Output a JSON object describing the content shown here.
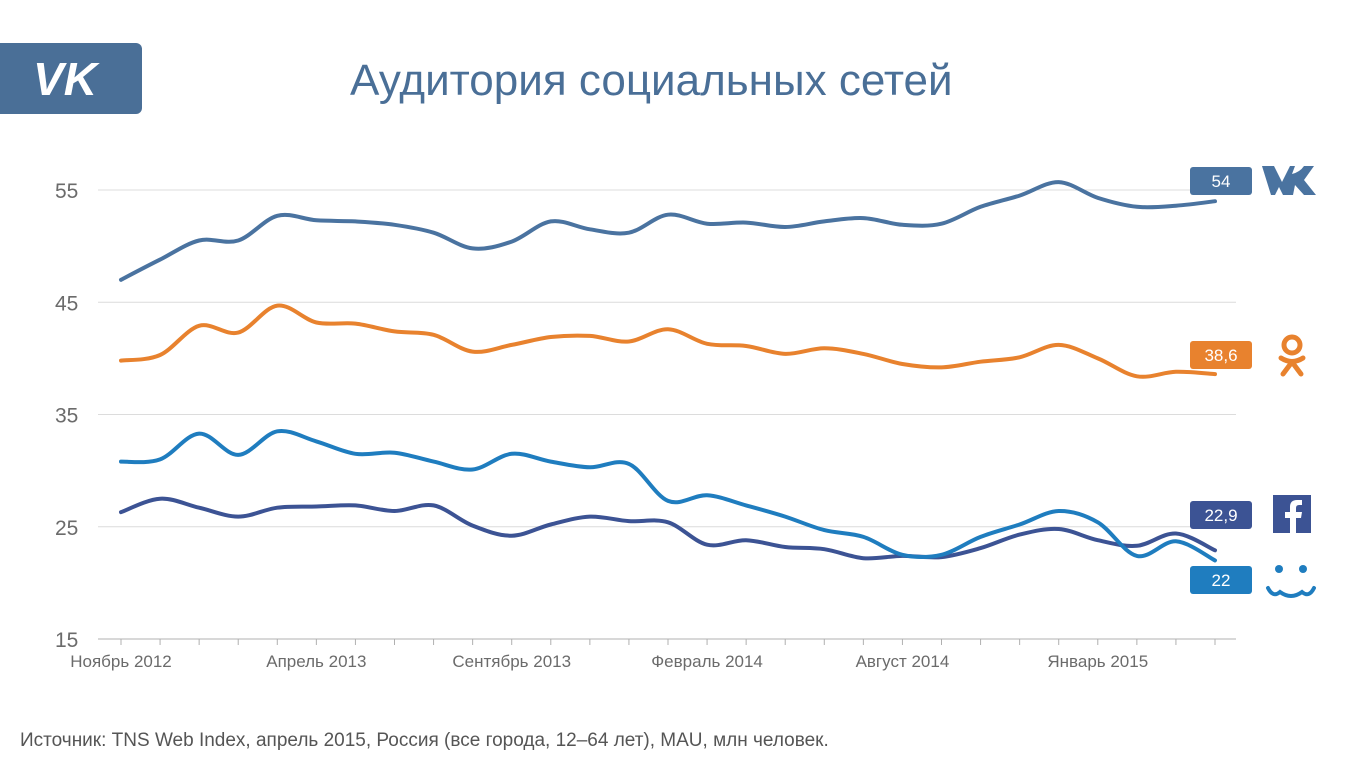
{
  "header": {
    "title": "Аудитория социальных сетей",
    "logo_icon": "vk-logo-icon"
  },
  "footer": {
    "source": "Источник: TNS Web Index, апрель 2015, Россия (все города, 12–64 лет), MAU, млн человек."
  },
  "chart_data": {
    "type": "line",
    "ylim": [
      15,
      58
    ],
    "yticks": [
      "15",
      "25",
      "35",
      "45",
      "55"
    ],
    "ytick_values": [
      15,
      25,
      35,
      45,
      55
    ],
    "x_count": 29,
    "xtick_labels": [
      "Ноябрь 2012",
      "Апрель 2013",
      "Сентябрь 2013",
      "Февраль 2014",
      "Август 2014",
      "Январь 2015"
    ],
    "xtick_indices": [
      0,
      5,
      10,
      15,
      20,
      25
    ],
    "grid": true,
    "series": [
      {
        "key": "vk",
        "color": "#4a73a0",
        "end_label": "54",
        "icon": "vk-icon",
        "values": [
          47,
          48.8,
          50.5,
          50.5,
          52.7,
          52.3,
          52.2,
          51.9,
          51.2,
          49.8,
          50.4,
          52.2,
          51.5,
          51.2,
          52.8,
          52,
          52.1,
          51.7,
          52.2,
          52.5,
          51.9,
          52,
          53.5,
          54.5,
          55.7,
          54.3,
          53.5,
          53.6,
          54
        ]
      },
      {
        "key": "ok",
        "color": "#e8822e",
        "end_label": "38,6",
        "icon": "odnoklassniki-icon",
        "values": [
          39.8,
          40.3,
          42.9,
          42.3,
          44.7,
          43.2,
          43.1,
          42.4,
          42.1,
          40.6,
          41.2,
          41.9,
          42,
          41.5,
          42.6,
          41.3,
          41.1,
          40.4,
          40.9,
          40.4,
          39.5,
          39.2,
          39.7,
          40.1,
          41.2,
          40,
          38.4,
          38.8,
          38.6
        ]
      },
      {
        "key": "fb",
        "color": "#3c5394",
        "end_label": "22,9",
        "icon": "facebook-icon",
        "values": [
          26.3,
          27.5,
          26.7,
          25.9,
          26.7,
          26.8,
          26.9,
          26.4,
          26.9,
          25.1,
          24.2,
          25.2,
          25.9,
          25.5,
          25.4,
          23.4,
          23.8,
          23.2,
          23,
          22.2,
          22.4,
          22.3,
          23.1,
          24.3,
          24.8,
          23.8,
          23.3,
          24.4,
          22.9
        ]
      },
      {
        "key": "mm",
        "color": "#1f7dbf",
        "end_label": "22",
        "icon": "moi-mir-icon",
        "values": [
          30.8,
          31,
          33.3,
          31.4,
          33.5,
          32.6,
          31.5,
          31.6,
          30.8,
          30.1,
          31.5,
          30.8,
          30.3,
          30.6,
          27.3,
          27.8,
          26.9,
          25.9,
          24.7,
          24.1,
          22.5,
          22.5,
          24.1,
          25.2,
          26.4,
          25.4,
          22.4,
          23.7,
          22
        ]
      }
    ]
  }
}
